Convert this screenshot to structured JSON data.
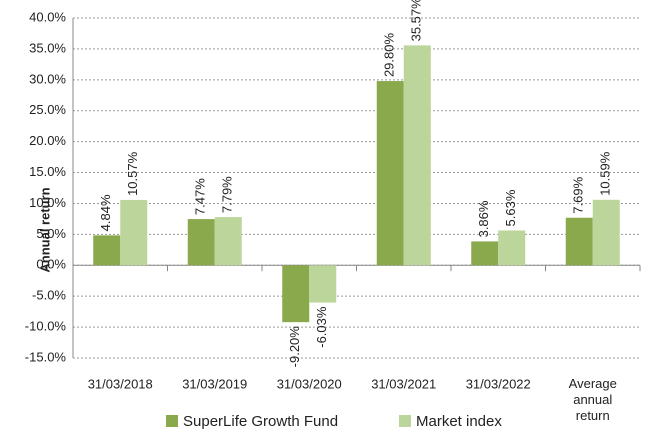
{
  "chart_data": {
    "type": "bar",
    "y_label": "Annual return",
    "categories": [
      "31/03/2018",
      "31/03/2019",
      "31/03/2020",
      "31/03/2021",
      "31/03/2022",
      "Average annual return"
    ],
    "series": [
      {
        "name": "SuperLife Growth Fund",
        "color": "#8aa94c",
        "values": [
          4.84,
          7.47,
          -9.2,
          29.8,
          3.86,
          7.69
        ],
        "value_labels": [
          "4.84%",
          "7.47%",
          "-9.20%",
          "29.80%",
          "3.86%",
          "7.69%"
        ]
      },
      {
        "name": "Market index",
        "color": "#bcd59b",
        "values": [
          10.57,
          7.79,
          -6.03,
          35.57,
          5.63,
          10.59
        ],
        "value_labels": [
          "10.57%",
          "7.79%",
          "-6.03%",
          "35.57%",
          "5.63%",
          "10.59%"
        ]
      }
    ],
    "ylim": [
      -15,
      40
    ],
    "yticks": [
      {
        "value": -15,
        "label": "-15.0%"
      },
      {
        "value": -10,
        "label": "-10.0%"
      },
      {
        "value": -5,
        "label": "-5.0%"
      },
      {
        "value": 0,
        "label": "0.0%"
      },
      {
        "value": 5,
        "label": "5.0%"
      },
      {
        "value": 10,
        "label": "10.0%"
      },
      {
        "value": 15,
        "label": "15.0%"
      },
      {
        "value": 20,
        "label": "20.0%"
      },
      {
        "value": 25,
        "label": "25.0%"
      },
      {
        "value": 30,
        "label": "30.0%"
      },
      {
        "value": 35,
        "label": "35.0%"
      },
      {
        "value": 40,
        "label": "40.0%"
      }
    ],
    "grid": true,
    "legend": "bottom"
  }
}
